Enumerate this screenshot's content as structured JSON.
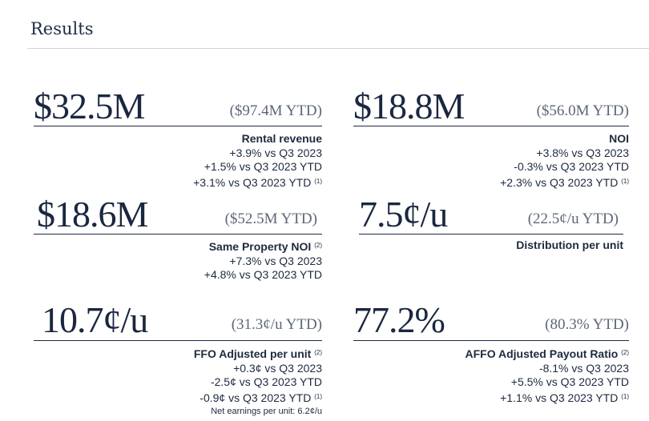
{
  "section_title": "Results",
  "metrics": [
    {
      "value": "$32.5M",
      "ytd": "($97.4M YTD)",
      "label": "Rental revenue",
      "lines": [
        "+3.9% vs Q3 2023",
        "+1.5% vs Q3 2023 YTD",
        "+3.1% vs Q3 2023 YTD"
      ],
      "footnotes": {
        "line_3": "(1)"
      }
    },
    {
      "value": "$18.8M",
      "ytd": "($56.0M YTD)",
      "label": "NOI",
      "lines": [
        "+3.8% vs Q3 2023",
        "-0.3% vs Q3 2023 YTD",
        "+2.3% vs Q3 2023 YTD"
      ],
      "footnotes": {
        "line_3": "(1)"
      }
    },
    {
      "value": "$18.6M",
      "ytd": "($52.5M YTD)",
      "label": "Same Property NOI",
      "label_footnote": "(2)",
      "lines": [
        "+7.3% vs Q3 2023",
        "+4.8% vs Q3 2023 YTD"
      ]
    },
    {
      "value": "7.5¢/u",
      "ytd": "(22.5¢/u YTD)",
      "label": "Distribution per unit"
    },
    {
      "value": "10.7¢/u",
      "ytd": "(31.3¢/u YTD)",
      "label": "FFO Adjusted per unit",
      "label_footnote": "(2)",
      "lines": [
        "+0.3¢ vs Q3 2023",
        "-2.5¢ vs Q3 2023 YTD",
        "-0.9¢ vs Q3 2023 YTD"
      ],
      "footnotes": {
        "line_3": "(1)"
      },
      "note": "Net earnings per unit: 6.2¢/u"
    },
    {
      "value": "77.2%",
      "ytd": "(80.3% YTD)",
      "label": "AFFO Adjusted Payout Ratio",
      "label_footnote": "(2)",
      "lines": [
        "-8.1% vs Q3 2023",
        "+5.5% vs Q3 2023 YTD",
        "+1.1% vs Q3 2023 YTD"
      ],
      "footnotes": {
        "line_3": "(1)"
      }
    }
  ]
}
